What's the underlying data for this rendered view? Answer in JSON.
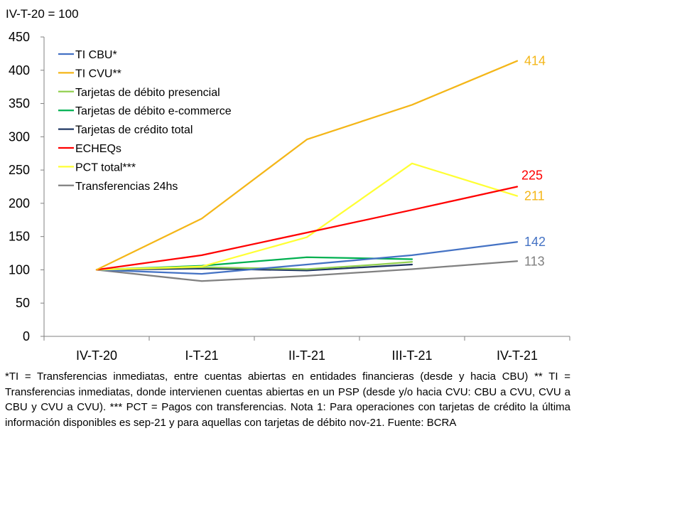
{
  "note": "*TI = Transferencias inmediatas, entre cuentas abiertas en entidades financieras (desde y hacia CBU) ** TI = Transferencias inmediatas, donde intervienen cuentas abiertas en un PSP (desde y/o hacia CVU: CBU a CVU, CVU a CBU y CVU a CVU). *** PCT = Pagos con transferencias. Nota 1: Para operaciones con tarjetas de crédito la última información disponibles es sep-21 y para aquellas con tarjetas de débito nov-21. Fuente: BCRA",
  "chart_data": {
    "type": "line",
    "unit_label": "IV-T-20 = 100",
    "categories": [
      "IV-T-20",
      "I-T-21",
      "II-T-21",
      "III-T-21",
      "IV-T-21"
    ],
    "y_ticks": [
      "0",
      "50",
      "100",
      "150",
      "200",
      "250",
      "300",
      "350",
      "400",
      "450"
    ],
    "ylim": [
      0,
      450
    ],
    "grid": false,
    "legend_position": "top-left",
    "series": [
      {
        "name": "TI CBU*",
        "color": "#4472C4",
        "x": [
          0,
          1,
          2,
          3,
          4
        ],
        "values": [
          100,
          94,
          108,
          122,
          142
        ],
        "end_label": "142"
      },
      {
        "name": "TI CVU**",
        "color": "#F4B618",
        "x": [
          0,
          1,
          2,
          3,
          4
        ],
        "values": [
          100,
          177,
          296,
          348,
          414
        ],
        "end_label": "414"
      },
      {
        "name": "Tarjetas de débito presencial",
        "color": "#92D050",
        "x": [
          0,
          1,
          2,
          2.67,
          3
        ],
        "values": [
          100,
          104,
          101,
          108,
          112
        ],
        "end_label": ""
      },
      {
        "name": "Tarjetas de débito e-commerce",
        "color": "#00B050",
        "x": [
          0,
          1,
          2,
          3
        ],
        "values": [
          100,
          106,
          119,
          116
        ],
        "end_label": ""
      },
      {
        "name": "Tarjetas de crédito total",
        "color": "#203864",
        "x": [
          0,
          1,
          2,
          3
        ],
        "values": [
          100,
          102,
          99,
          108
        ],
        "end_label": ""
      },
      {
        "name": "ECHEQs",
        "color": "#FF0000",
        "x": [
          0,
          1,
          2,
          3,
          4
        ],
        "values": [
          100,
          122,
          156,
          190,
          225
        ],
        "end_label": "225"
      },
      {
        "name": "PCT total***",
        "color": "#FFFF33",
        "x": [
          0,
          1,
          2,
          3,
          4
        ],
        "values": [
          100,
          105,
          149,
          260,
          211
        ],
        "end_label": "211",
        "end_label_color": "#F4B618"
      },
      {
        "name": "Transferencias 24hs",
        "color": "#808080",
        "x": [
          0,
          1,
          2,
          3,
          4
        ],
        "values": [
          100,
          83,
          91,
          101,
          113
        ],
        "end_label": "113"
      }
    ]
  }
}
